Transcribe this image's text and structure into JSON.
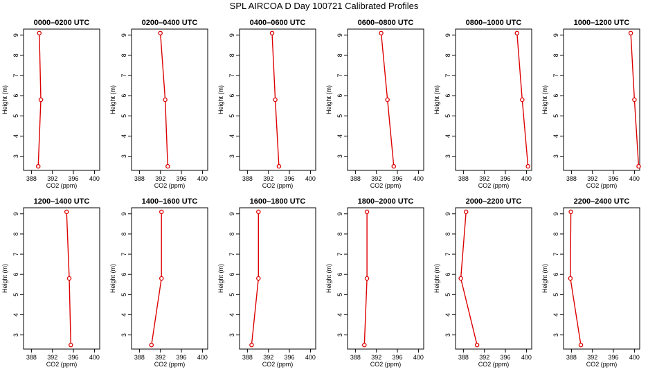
{
  "title": "SPL AIRCOA D  Day 100721  Calibrated Profiles",
  "colors": {
    "series": "#dd0000",
    "axis": "#000000"
  },
  "chart_data": [
    {
      "type": "line",
      "title": "0000–0200 UTC",
      "xlabel": "CO2 (ppm)",
      "ylabel": "Height (m)",
      "xlim": [
        386.5,
        401
      ],
      "ylim": [
        2.3,
        9.3
      ],
      "xticks": [
        388,
        392,
        396,
        400
      ],
      "yticks": [
        3,
        4,
        5,
        6,
        7,
        8,
        9
      ],
      "x": [
        389.3,
        389.8,
        389.5
      ],
      "y": [
        2.5,
        5.8,
        9.1
      ]
    },
    {
      "type": "line",
      "title": "0200–0400 UTC",
      "xlabel": "CO2 (ppm)",
      "ylabel": "Height (m)",
      "xlim": [
        386.5,
        401
      ],
      "ylim": [
        2.3,
        9.3
      ],
      "xticks": [
        388,
        392,
        396,
        400
      ],
      "yticks": [
        3,
        4,
        5,
        6,
        7,
        8,
        9
      ],
      "x": [
        393.4,
        392.9,
        392.0
      ],
      "y": [
        2.5,
        5.8,
        9.1
      ]
    },
    {
      "type": "line",
      "title": "0400–0600 UTC",
      "xlabel": "CO2 (ppm)",
      "ylabel": "Height (m)",
      "xlim": [
        386.5,
        401
      ],
      "ylim": [
        2.3,
        9.3
      ],
      "xticks": [
        388,
        392,
        396,
        400
      ],
      "yticks": [
        3,
        4,
        5,
        6,
        7,
        8,
        9
      ],
      "x": [
        394.0,
        393.3,
        392.7
      ],
      "y": [
        2.5,
        5.8,
        9.1
      ]
    },
    {
      "type": "line",
      "title": "0600–0800 UTC",
      "xlabel": "CO2 (ppm)",
      "ylabel": "Height (m)",
      "xlim": [
        386.5,
        401
      ],
      "ylim": [
        2.3,
        9.3
      ],
      "xticks": [
        388,
        392,
        396,
        400
      ],
      "yticks": [
        3,
        4,
        5,
        6,
        7,
        8,
        9
      ],
      "x": [
        395.3,
        394.1,
        392.9
      ],
      "y": [
        2.5,
        5.8,
        9.1
      ]
    },
    {
      "type": "line",
      "title": "0800–1000 UTC",
      "xlabel": "CO2 (ppm)",
      "ylabel": "Height (m)",
      "xlim": [
        386.5,
        401
      ],
      "ylim": [
        2.3,
        9.3
      ],
      "xticks": [
        388,
        392,
        396,
        400
      ],
      "yticks": [
        3,
        4,
        5,
        6,
        7,
        8,
        9
      ],
      "x": [
        400.3,
        399.2,
        398.2
      ],
      "y": [
        2.5,
        5.8,
        9.1
      ]
    },
    {
      "type": "line",
      "title": "1000–1200 UTC",
      "xlabel": "CO2 (ppm)",
      "ylabel": "Height (m)",
      "xlim": [
        386.5,
        401
      ],
      "ylim": [
        2.3,
        9.3
      ],
      "xticks": [
        388,
        392,
        396,
        400
      ],
      "yticks": [
        3,
        4,
        5,
        6,
        7,
        8,
        9
      ],
      "x": [
        400.8,
        400.0,
        399.3
      ],
      "y": [
        2.5,
        5.8,
        9.1
      ]
    },
    {
      "type": "line",
      "title": "1200–1400 UTC",
      "xlabel": "CO2 (ppm)",
      "ylabel": "Height (m)",
      "xlim": [
        386.5,
        401
      ],
      "ylim": [
        2.3,
        9.3
      ],
      "xticks": [
        388,
        392,
        396,
        400
      ],
      "yticks": [
        3,
        4,
        5,
        6,
        7,
        8,
        9
      ],
      "x": [
        395.5,
        395.2,
        394.7
      ],
      "y": [
        2.5,
        5.8,
        9.1
      ]
    },
    {
      "type": "line",
      "title": "1400–1600 UTC",
      "xlabel": "CO2 (ppm)",
      "ylabel": "Height (m)",
      "xlim": [
        386.5,
        401
      ],
      "ylim": [
        2.3,
        9.3
      ],
      "xticks": [
        388,
        392,
        396,
        400
      ],
      "yticks": [
        3,
        4,
        5,
        6,
        7,
        8,
        9
      ],
      "x": [
        390.3,
        392.2,
        392.2
      ],
      "y": [
        2.5,
        5.8,
        9.1
      ]
    },
    {
      "type": "line",
      "title": "1600–1800 UTC",
      "xlabel": "CO2 (ppm)",
      "ylabel": "Height (m)",
      "xlim": [
        386.5,
        401
      ],
      "ylim": [
        2.3,
        9.3
      ],
      "xticks": [
        388,
        392,
        396,
        400
      ],
      "yticks": [
        3,
        4,
        5,
        6,
        7,
        8,
        9
      ],
      "x": [
        388.8,
        390.1,
        390.1
      ],
      "y": [
        2.5,
        5.8,
        9.1
      ]
    },
    {
      "type": "line",
      "title": "1800–2000 UTC",
      "xlabel": "CO2 (ppm)",
      "ylabel": "Height (m)",
      "xlim": [
        386.5,
        401
      ],
      "ylim": [
        2.3,
        9.3
      ],
      "xticks": [
        388,
        392,
        396,
        400
      ],
      "yticks": [
        3,
        4,
        5,
        6,
        7,
        8,
        9
      ],
      "x": [
        389.7,
        390.2,
        390.2
      ],
      "y": [
        2.5,
        5.8,
        9.1
      ]
    },
    {
      "type": "line",
      "title": "2000–2200 UTC",
      "xlabel": "CO2 (ppm)",
      "ylabel": "Height (m)",
      "xlim": [
        386.5,
        401
      ],
      "ylim": [
        2.3,
        9.3
      ],
      "xticks": [
        388,
        392,
        396,
        400
      ],
      "yticks": [
        3,
        4,
        5,
        6,
        7,
        8,
        9
      ],
      "x": [
        390.6,
        387.5,
        388.5
      ],
      "y": [
        2.5,
        5.8,
        9.1
      ]
    },
    {
      "type": "line",
      "title": "2200–2400 UTC",
      "xlabel": "CO2 (ppm)",
      "ylabel": "Height (m)",
      "xlim": [
        386.5,
        401
      ],
      "ylim": [
        2.3,
        9.3
      ],
      "xticks": [
        388,
        392,
        396,
        400
      ],
      "yticks": [
        3,
        4,
        5,
        6,
        7,
        8,
        9
      ],
      "x": [
        389.8,
        387.8,
        387.9
      ],
      "y": [
        2.5,
        5.8,
        9.1
      ]
    }
  ]
}
